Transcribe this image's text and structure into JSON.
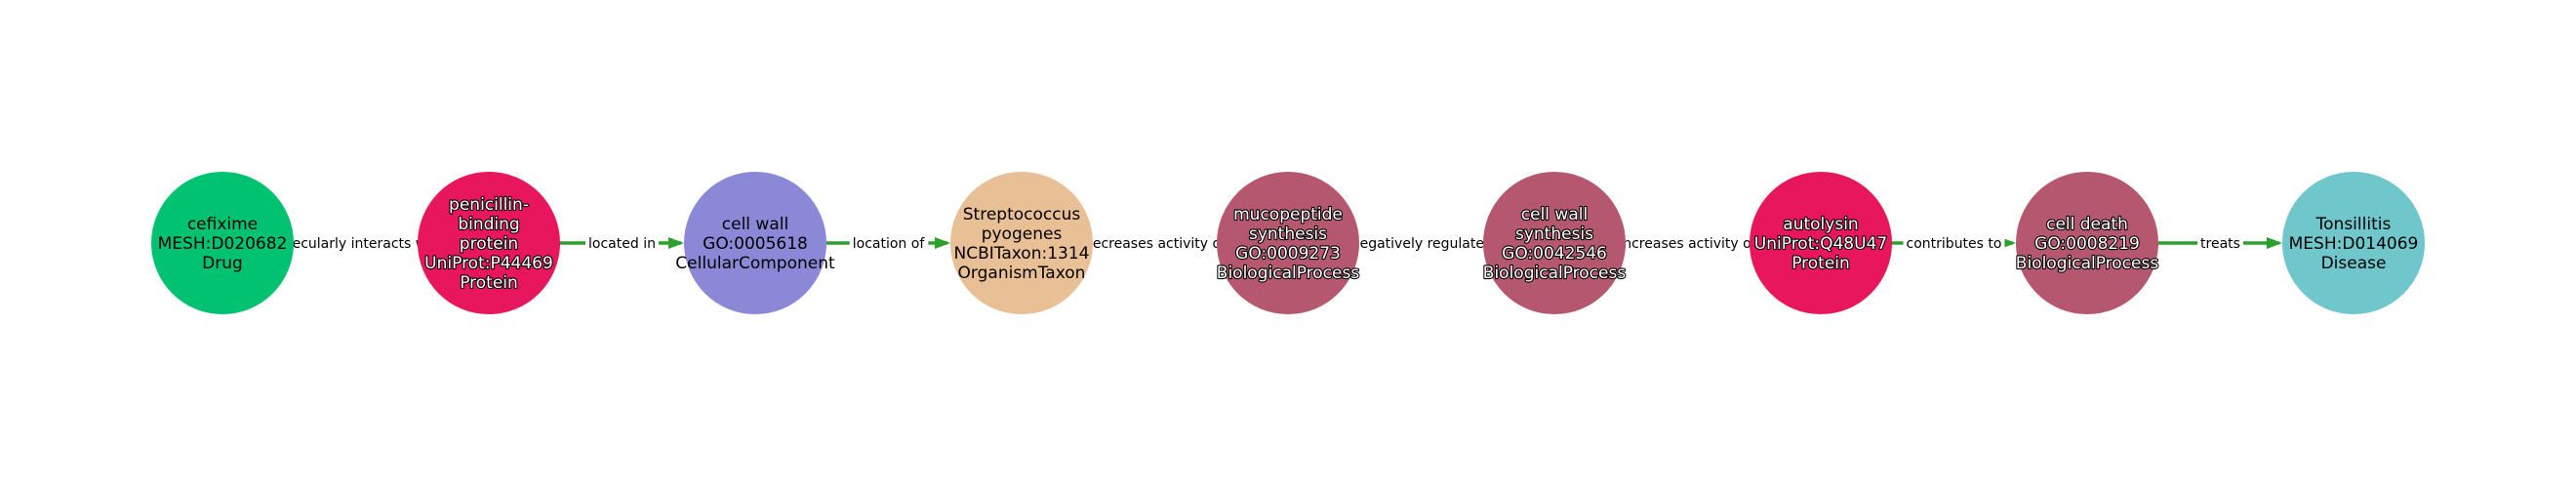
{
  "graph": {
    "edge_color": "#2ca02c",
    "nodes": [
      {
        "lines": [
          "cefixime",
          "MESH:D020682",
          "Drug"
        ],
        "color": "#00c271",
        "text_color": "#000000",
        "halo": false
      },
      {
        "lines": [
          "penicillin-",
          "binding",
          "protein",
          "UniProt:P44469",
          "Protein"
        ],
        "color": "#e8175d",
        "text_color": "#ffffff",
        "halo": true
      },
      {
        "lines": [
          "cell wall",
          "GO:0005618",
          "CellularComponent"
        ],
        "color": "#8c88d8",
        "text_color": "#000000",
        "halo": false
      },
      {
        "lines": [
          "Streptococcus",
          "pyogenes",
          "NCBITaxon:1314",
          "OrganismTaxon"
        ],
        "color": "#e9bf95",
        "text_color": "#000000",
        "halo": false
      },
      {
        "lines": [
          "mucopeptide",
          "synthesis",
          "GO:0009273",
          "BiologicalProcess"
        ],
        "color": "#b5576f",
        "text_color": "#ffffff",
        "halo": true
      },
      {
        "lines": [
          "cell wall",
          "synthesis",
          "GO:0042546",
          "BiologicalProcess"
        ],
        "color": "#b5576f",
        "text_color": "#ffffff",
        "halo": true
      },
      {
        "lines": [
          "autolysin",
          "UniProt:Q48U47",
          "Protein"
        ],
        "color": "#e8175d",
        "text_color": "#ffffff",
        "halo": true
      },
      {
        "lines": [
          "cell death",
          "GO:0008219",
          "BiologicalProcess"
        ],
        "color": "#b5576f",
        "text_color": "#ffffff",
        "halo": true
      },
      {
        "lines": [
          "Tonsillitis",
          "MESH:D014069",
          "Disease"
        ],
        "color": "#70c7cb",
        "text_color": "#000000",
        "halo": false
      }
    ],
    "edges": [
      {
        "label": "molecularly interacts with"
      },
      {
        "label": "located in"
      },
      {
        "label": "location of"
      },
      {
        "label": "decreases activity of"
      },
      {
        "label": "negatively regulates"
      },
      {
        "label": "increases activity of"
      },
      {
        "label": "contributes to"
      },
      {
        "label": "treats"
      }
    ]
  }
}
